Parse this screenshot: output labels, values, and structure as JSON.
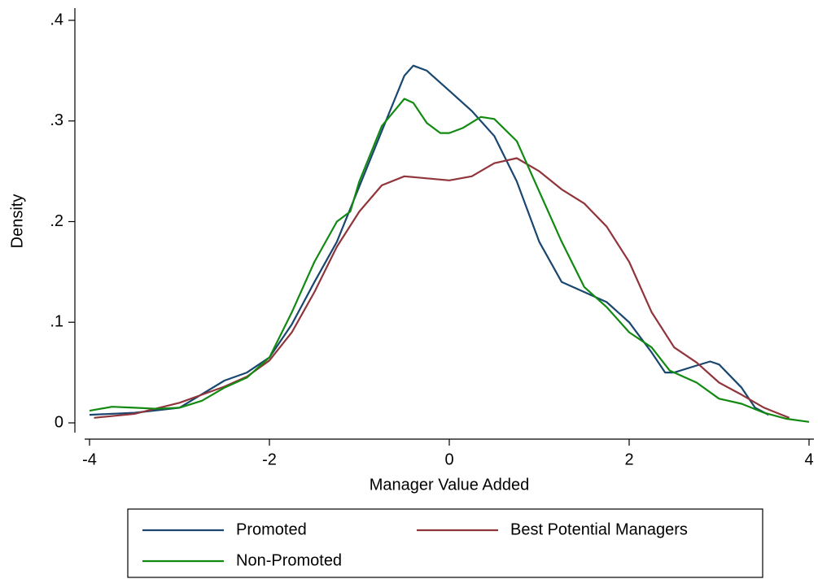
{
  "chart_data": {
    "type": "line",
    "x_label": "Manager Value Added",
    "y_label": "Density",
    "xlim": [
      -4,
      4
    ],
    "xticks": [
      -4,
      -2,
      0,
      2,
      4
    ],
    "ylim": [
      0,
      0.4
    ],
    "yticks": [
      0,
      {
        "value": 0.1,
        "label": ".1"
      },
      {
        "value": 0.2,
        "label": ".2"
      },
      {
        "value": 0.3,
        "label": ".3"
      },
      {
        "value": 0.4,
        "label": ".4"
      }
    ],
    "legend": "bottom",
    "series": [
      {
        "name": "Promoted",
        "color": "#1a476f",
        "x": [
          -4,
          -3.5,
          -3,
          -2.5,
          -2.25,
          -2,
          -1.75,
          -1.5,
          -1.25,
          -1,
          -0.75,
          -0.5,
          -0.4,
          -0.25,
          0,
          0.25,
          0.5,
          0.75,
          1,
          1.25,
          1.5,
          1.75,
          2,
          2.25,
          2.4,
          2.5,
          2.75,
          2.9,
          3,
          3.25,
          3.4,
          3.55
        ],
        "values": [
          0.008,
          0.01,
          0.015,
          0.042,
          0.05,
          0.065,
          0.098,
          0.14,
          0.18,
          0.235,
          0.29,
          0.345,
          0.355,
          0.35,
          0.33,
          0.31,
          0.285,
          0.24,
          0.18,
          0.14,
          0.13,
          0.12,
          0.1,
          0.07,
          0.05,
          0.05,
          0.057,
          0.061,
          0.058,
          0.035,
          0.015,
          0.008
        ]
      },
      {
        "name": "Best Potential Managers",
        "color": "#90353b",
        "x": [
          -3.95,
          -3.5,
          -3,
          -2.5,
          -2.25,
          -2,
          -1.75,
          -1.5,
          -1.25,
          -1,
          -0.75,
          -0.5,
          -0.25,
          0,
          0.25,
          0.5,
          0.75,
          1,
          1.25,
          1.5,
          1.75,
          2,
          2.25,
          2.5,
          2.75,
          3,
          3.25,
          3.5,
          3.78
        ],
        "values": [
          0.005,
          0.009,
          0.02,
          0.036,
          0.046,
          0.062,
          0.09,
          0.13,
          0.175,
          0.21,
          0.236,
          0.245,
          0.243,
          0.241,
          0.245,
          0.258,
          0.263,
          0.25,
          0.232,
          0.218,
          0.195,
          0.16,
          0.11,
          0.075,
          0.06,
          0.04,
          0.028,
          0.015,
          0.005
        ]
      },
      {
        "name": "Non-Promoted",
        "color": "#128a12",
        "x": [
          -4,
          -3.75,
          -3.5,
          -3.25,
          -3,
          -2.75,
          -2.5,
          -2.25,
          -2,
          -1.75,
          -1.5,
          -1.25,
          -1.1,
          -1,
          -0.75,
          -0.5,
          -0.4,
          -0.25,
          -0.1,
          0,
          0.15,
          0.35,
          0.5,
          0.75,
          1,
          1.25,
          1.5,
          1.75,
          2,
          2.25,
          2.45,
          2.75,
          3,
          3.25,
          3.5,
          3.75,
          4
        ],
        "values": [
          0.012,
          0.016,
          0.015,
          0.014,
          0.015,
          0.022,
          0.035,
          0.045,
          0.065,
          0.11,
          0.16,
          0.2,
          0.21,
          0.24,
          0.295,
          0.322,
          0.318,
          0.298,
          0.288,
          0.288,
          0.293,
          0.304,
          0.302,
          0.28,
          0.23,
          0.18,
          0.135,
          0.115,
          0.09,
          0.075,
          0.052,
          0.04,
          0.024,
          0.019,
          0.01,
          0.004,
          0.001
        ]
      }
    ]
  }
}
